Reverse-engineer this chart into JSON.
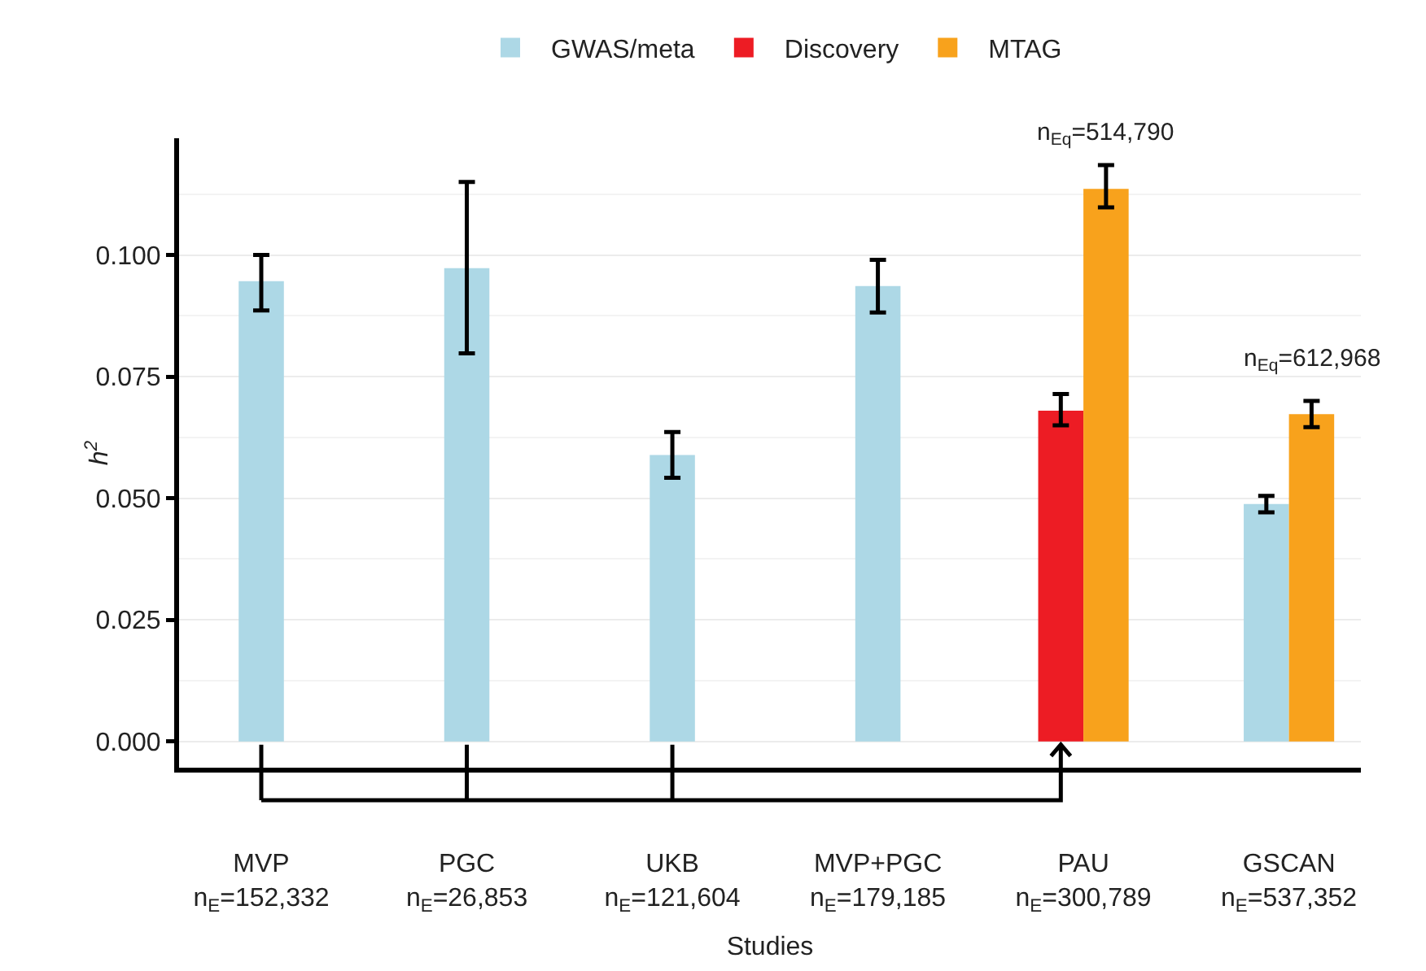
{
  "chart_data": {
    "type": "bar",
    "xlabel": "Studies",
    "ylabel": "h$^{2}$",
    "categories": [
      "MVP\nn$_{E}$=152,332",
      "PGC\nn$_{E}$=26,853",
      "UKB\nn$_{E}$=121,604",
      "MVP+PGC\nn$_{E}$=179,185",
      "PAU\nn$_{E}$=300,789",
      "GSCAN\nn$_{E}$=537,352"
    ],
    "series": [
      {
        "name": "GWAS/meta",
        "color": "#add8e6",
        "values": [
          0.0946,
          0.0973,
          0.0589,
          0.0936,
          null,
          0.0488
        ],
        "errors": [
          [
            0.0886,
            0.1
          ],
          [
            0.0798,
            0.115
          ],
          [
            0.0542,
            0.0636
          ],
          [
            0.0882,
            0.099
          ],
          null,
          [
            0.0471,
            0.0505
          ]
        ]
      },
      {
        "name": "Discovery",
        "color": "#ed1c24",
        "values": [
          null,
          null,
          null,
          null,
          0.068,
          null
        ],
        "errors": [
          null,
          null,
          null,
          null,
          [
            0.065,
            0.0714
          ],
          null
        ]
      },
      {
        "name": "MTAG",
        "color": "#f8a21c",
        "values": [
          null,
          null,
          null,
          null,
          0.1136,
          0.0673
        ],
        "errors": [
          null,
          null,
          null,
          null,
          [
            0.1098,
            0.1185
          ],
          [
            0.0646,
            0.07
          ]
        ]
      }
    ],
    "ylim": [
      -0.0054,
      0.124
    ],
    "yticks": [
      {
        "value": 0,
        "label": "0.000"
      },
      {
        "value": 0.025,
        "label": "0.025"
      },
      {
        "value": 0.05,
        "label": "0.050"
      },
      {
        "value": 0.075,
        "label": "0.075"
      },
      {
        "value": 0.1,
        "label": "0.100"
      }
    ],
    "grid": "y",
    "legend": "top",
    "annotations": [
      {
        "text": "n$_{Eq}$=514,790",
        "x": "PAU\nn$_{E}$=300,789",
        "y": 0.1136
      },
      {
        "text": "n$_{Eq}$=612,968",
        "x": "GSCAN\nn$_{E}$=537,352",
        "y": 0.0673
      }
    ]
  }
}
